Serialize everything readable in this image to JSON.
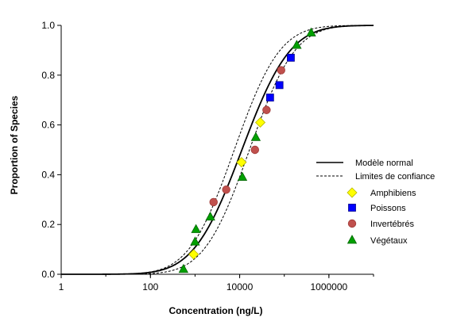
{
  "chart_data": {
    "type": "scatter",
    "title": "",
    "xlabel": "Concentration (ng/L)",
    "ylabel": "Proportion of Species",
    "x_scale": "log",
    "xlim": [
      1,
      10000000
    ],
    "ylim": [
      0,
      1
    ],
    "x_ticks": [
      {
        "value": 1,
        "label": "1"
      },
      {
        "value": 100,
        "label": "100"
      },
      {
        "value": 10000,
        "label": "10000"
      },
      {
        "value": 1000000,
        "label": "1000000"
      }
    ],
    "y_ticks": [
      {
        "value": 0,
        "label": "0.0"
      },
      {
        "value": 0.2,
        "label": "0.2"
      },
      {
        "value": 0.4,
        "label": "0.4"
      },
      {
        "value": 0.6,
        "label": "0.6"
      },
      {
        "value": 0.8,
        "label": "0.8"
      },
      {
        "value": 1,
        "label": "1.0"
      }
    ],
    "grid": false,
    "legend_position": "right",
    "curves": [
      {
        "name": "Modèle normal",
        "style": "solid",
        "color": "#000000",
        "log10_mean": 4.05,
        "log10_sd": 0.85
      },
      {
        "name": "Limites de confiance",
        "style": "dashed",
        "color": "#000000",
        "log10_mean": 3.88,
        "log10_sd": 0.8
      },
      {
        "name": "Limites de confiance",
        "style": "dashed",
        "color": "#000000",
        "log10_mean": 4.22,
        "log10_sd": 0.8
      }
    ],
    "series": [
      {
        "name": "Amphibiens",
        "marker": "diamond",
        "color": "#ffff00",
        "stroke": "#b8b800",
        "x": [
          930,
          11000,
          29000
        ],
        "y": [
          0.08,
          0.45,
          0.61
        ]
      },
      {
        "name": "Poissons",
        "marker": "square",
        "color": "#0000ff",
        "stroke": "#00008b",
        "x": [
          48000,
          78000,
          140000
        ],
        "y": [
          0.71,
          0.76,
          0.87
        ]
      },
      {
        "name": "Invertébrés",
        "marker": "circle",
        "color": "#c0504d",
        "stroke": "#a03c39",
        "x": [
          2600,
          5000,
          22000,
          40000,
          85000
        ],
        "y": [
          0.29,
          0.34,
          0.5,
          0.66,
          0.82
        ]
      },
      {
        "name": "Végétaux",
        "marker": "triangle",
        "color": "#00a000",
        "stroke": "#006400",
        "x": [
          550,
          1000,
          1050,
          2200,
          11500,
          23000,
          190000,
          400000
        ],
        "y": [
          0.02,
          0.13,
          0.18,
          0.23,
          0.39,
          0.55,
          0.92,
          0.97
        ]
      }
    ],
    "legend": [
      {
        "label": "Modèle normal",
        "kind": "line-solid"
      },
      {
        "label": "Limites de confiance",
        "kind": "line-dashed"
      },
      {
        "label": "Amphibiens",
        "kind": "diamond",
        "color": "#ffff00",
        "stroke": "#b8b800"
      },
      {
        "label": "Poissons",
        "kind": "square",
        "color": "#0000ff",
        "stroke": "#00008b"
      },
      {
        "label": "Invertébrés",
        "kind": "circle",
        "color": "#c0504d",
        "stroke": "#a03c39"
      },
      {
        "label": "Végétaux",
        "kind": "triangle",
        "color": "#00a000",
        "stroke": "#006400"
      }
    ]
  }
}
